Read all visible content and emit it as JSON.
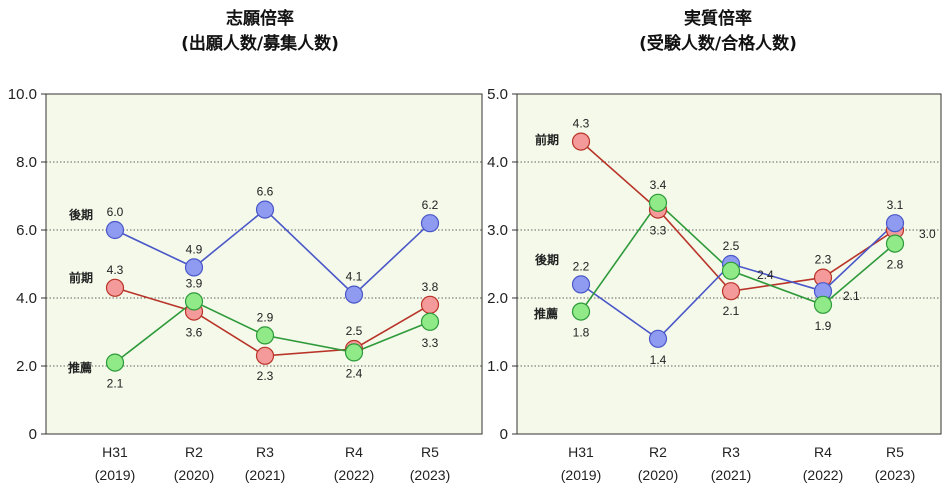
{
  "chart_data": [
    {
      "type": "line",
      "title": "志願倍率",
      "subtitle": "(出願人数/募集人数)",
      "categories": [
        "H31",
        "R2",
        "R3",
        "R4",
        "R5"
      ],
      "category_years": [
        "(2019)",
        "(2020)",
        "(2021)",
        "(2022)",
        "(2023)"
      ],
      "yticks": [
        "10.0",
        "8.0",
        "6.0",
        "4.0",
        "2.0",
        "0"
      ],
      "ylim": [
        0,
        10
      ],
      "series": [
        {
          "name": "後期",
          "values": [
            6.0,
            4.9,
            6.6,
            4.1,
            6.2
          ],
          "labels": [
            "6.0",
            "4.9",
            "6.6",
            "4.1",
            "6.2"
          ],
          "color": "#4a57c8",
          "fill": "#8f9bf0"
        },
        {
          "name": "前期",
          "values": [
            4.3,
            3.6,
            2.3,
            2.5,
            3.8
          ],
          "labels": [
            "4.3",
            "3.6",
            "2.3",
            "2.5",
            "3.8"
          ],
          "color": "#b83428",
          "fill": "#f59a9a"
        },
        {
          "name": "推薦",
          "values": [
            2.1,
            3.9,
            2.9,
            2.4,
            3.3
          ],
          "labels": [
            "2.1",
            "3.9",
            "2.9",
            "2.4",
            "3.3"
          ],
          "color": "#2e9a3a",
          "fill": "#90ea88"
        }
      ]
    },
    {
      "type": "line",
      "title": "実質倍率",
      "subtitle": "(受験人数/合格人数)",
      "categories": [
        "H31",
        "R2",
        "R3",
        "R4",
        "R5"
      ],
      "category_years": [
        "(2019)",
        "(2020)",
        "(2021)",
        "(2022)",
        "(2023)"
      ],
      "yticks": [
        "5.0",
        "4.0",
        "3.0",
        "2.0",
        "1.0",
        "0"
      ],
      "ylim": [
        0,
        5
      ],
      "series": [
        {
          "name": "前期",
          "values": [
            4.3,
            3.3,
            2.1,
            2.3,
            3.0
          ],
          "labels": [
            "4.3",
            "3.3",
            "2.1",
            "2.3",
            "3.0"
          ],
          "color": "#b83428",
          "fill": "#f59a9a"
        },
        {
          "name": "後期",
          "values": [
            2.2,
            1.4,
            2.5,
            2.1,
            3.1
          ],
          "labels": [
            "2.2",
            "1.4",
            "2.5",
            "2.1",
            "3.1"
          ],
          "color": "#4a57c8",
          "fill": "#8f9bf0"
        },
        {
          "name": "推薦",
          "values": [
            1.8,
            3.4,
            2.4,
            1.9,
            2.8
          ],
          "labels": [
            "1.8",
            "3.4",
            "2.4",
            "1.9",
            "2.8"
          ],
          "color": "#2e9a3a",
          "fill": "#90ea88"
        }
      ]
    }
  ],
  "style": {
    "plot_background": "#f4f9ea",
    "grid": "dotted",
    "legend": "inline-left"
  }
}
